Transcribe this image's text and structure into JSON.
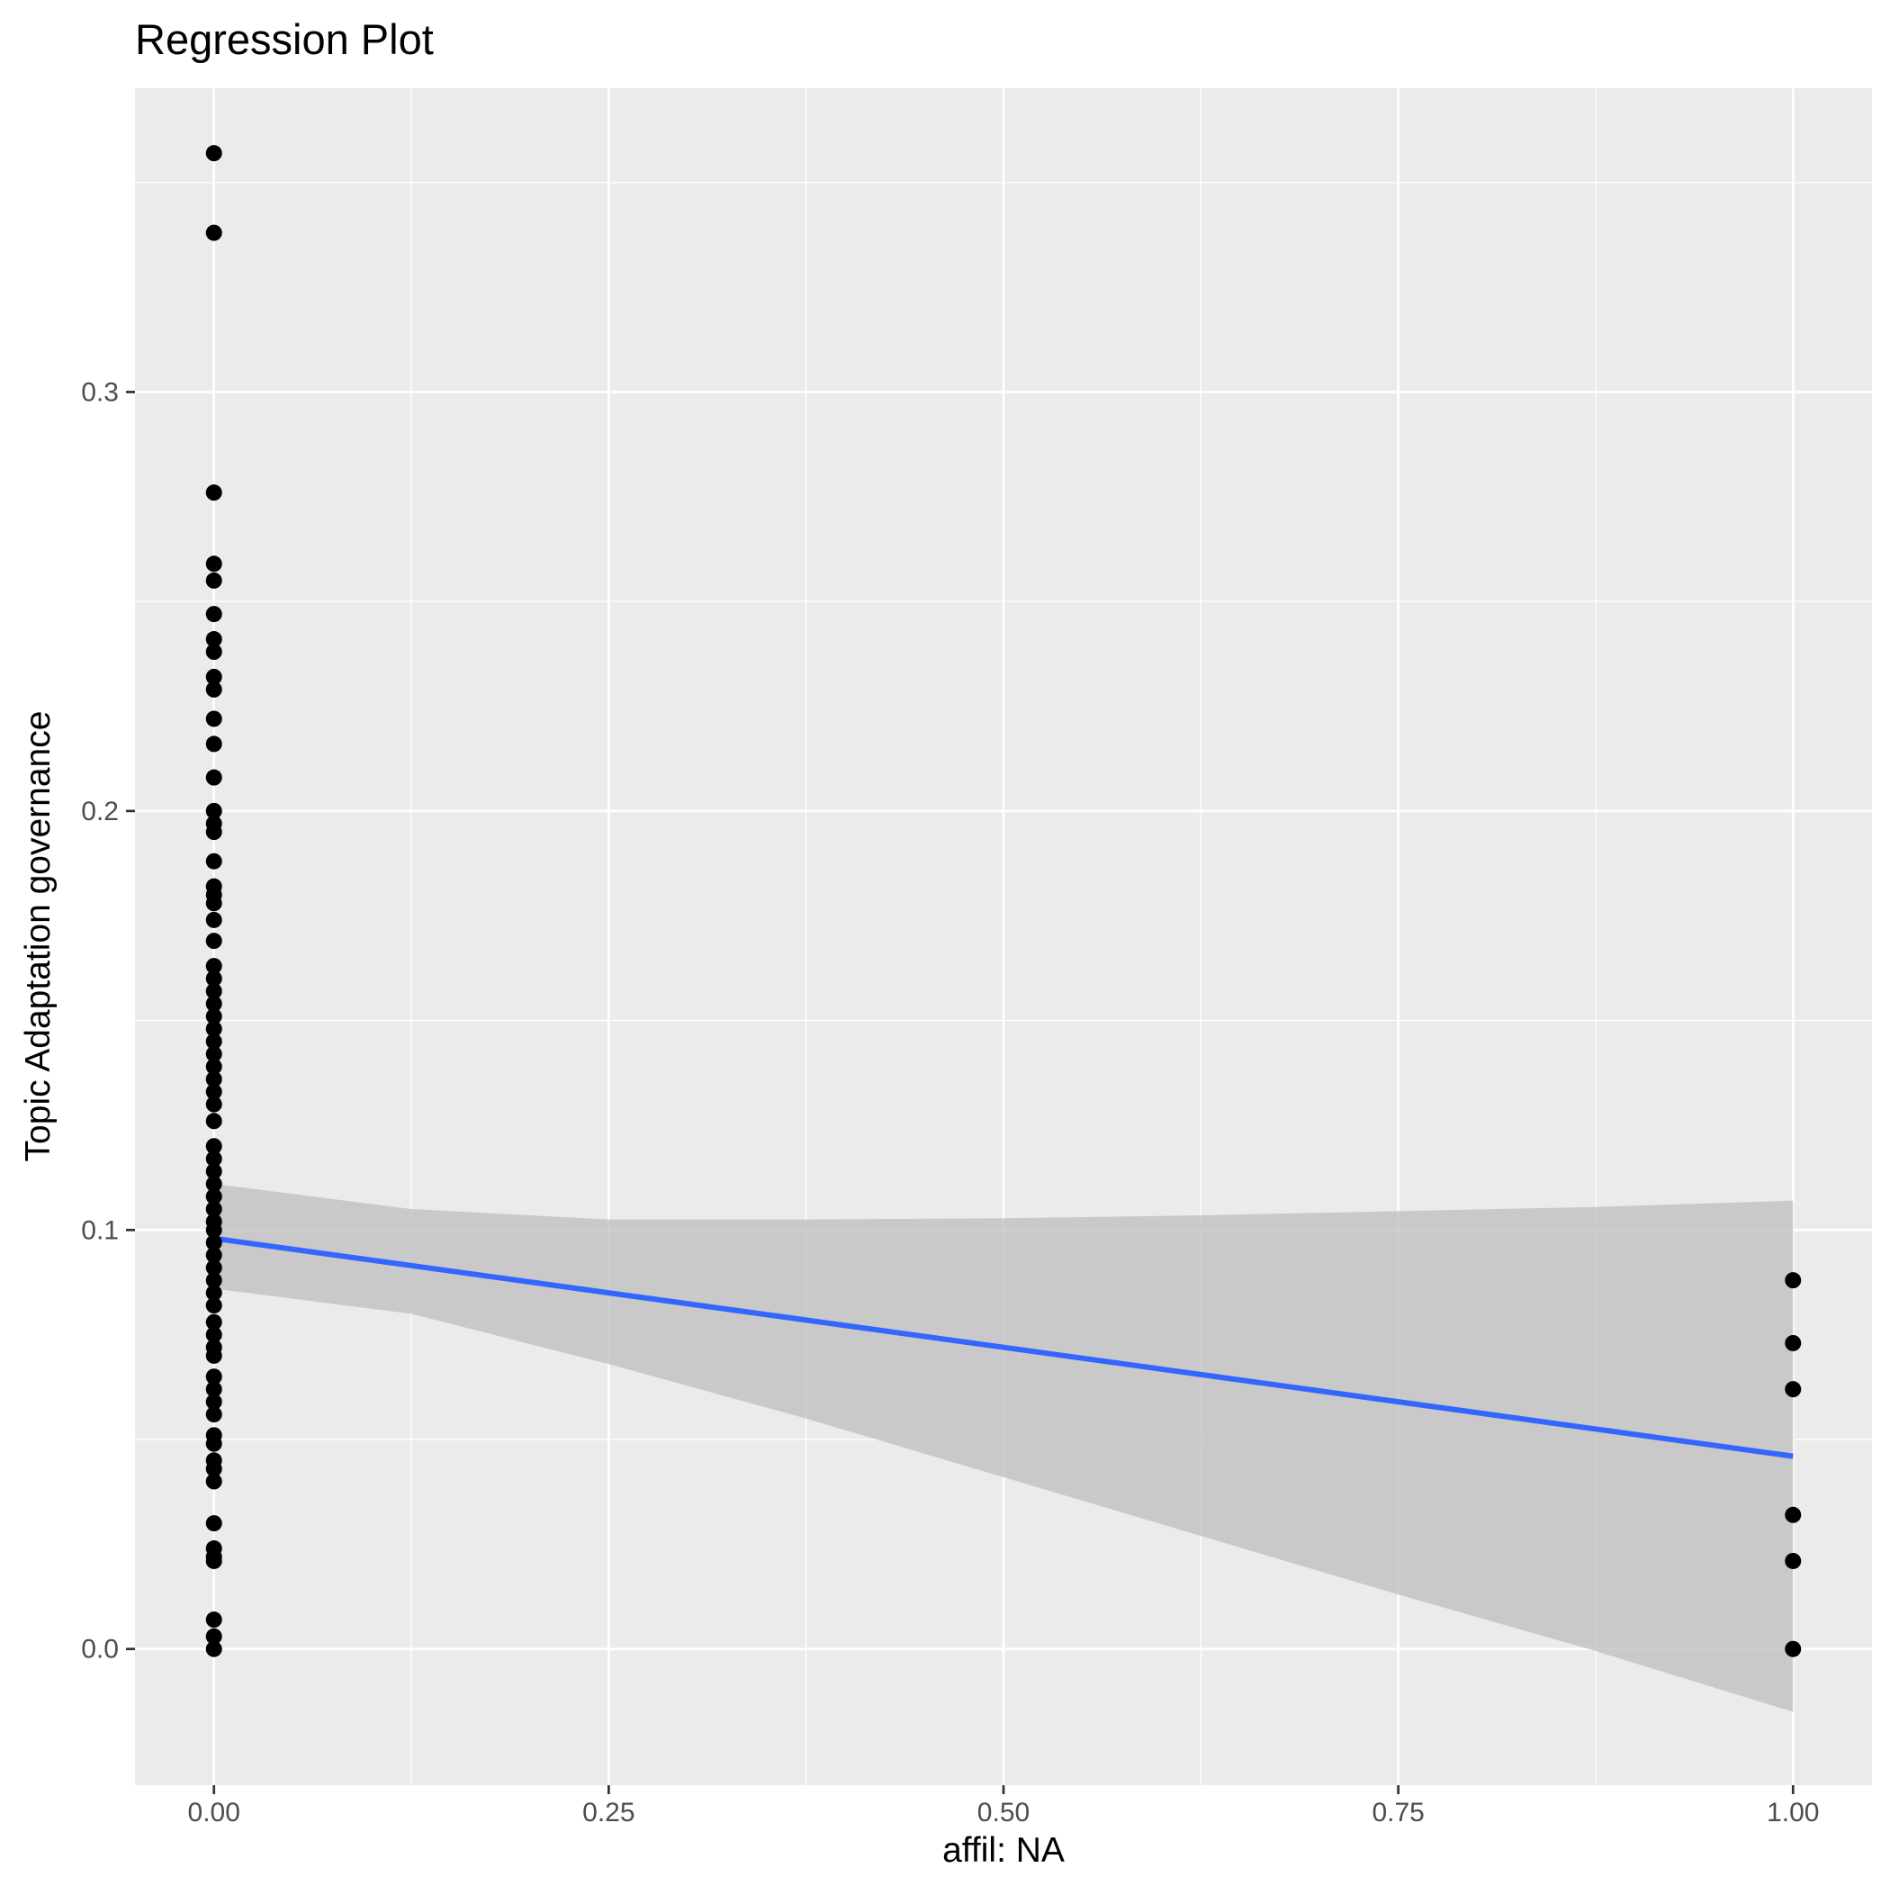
{
  "chart_data": {
    "type": "scatter",
    "title": "Regression Plot",
    "xlabel": "affil: NA",
    "ylabel": "Topic Adaptation governance",
    "xlim": [
      -0.05,
      1.05
    ],
    "ylim": [
      -0.0325,
      0.3725
    ],
    "x_ticks": [
      0,
      0.25,
      0.5,
      0.75,
      1
    ],
    "x_tick_labels": [
      "0.00",
      "0.25",
      "0.50",
      "0.75",
      "1.00"
    ],
    "y_ticks": [
      0,
      0.1,
      0.2,
      0.3
    ],
    "y_tick_labels": [
      "0.0",
      "0.1",
      "0.2",
      "0.3"
    ],
    "grid": true,
    "legend": "none",
    "points": {
      "color": "#000000",
      "x0_values": [
        0.357,
        0.338,
        0.276,
        0.259,
        0.255,
        0.247,
        0.241,
        0.238,
        0.232,
        0.229,
        0.222,
        0.216,
        0.208,
        0.2,
        0.197,
        0.195,
        0.188,
        0.182,
        0.18,
        0.178,
        0.174,
        0.169,
        0.163,
        0.16,
        0.157,
        0.154,
        0.151,
        0.148,
        0.145,
        0.142,
        0.139,
        0.136,
        0.133,
        0.13,
        0.126,
        0.12,
        0.117,
        0.114,
        0.111,
        0.108,
        0.105,
        0.102,
        0.1,
        0.097,
        0.094,
        0.091,
        0.088,
        0.085,
        0.082,
        0.078,
        0.075,
        0.072,
        0.07,
        0.065,
        0.062,
        0.059,
        0.056,
        0.051,
        0.049,
        0.045,
        0.043,
        0.04,
        0.03,
        0.024,
        0.022,
        0.021,
        0.007,
        0.003,
        0.0
      ],
      "x1_values": [
        0.088,
        0.073,
        0.062,
        0.032,
        0.021,
        0.0
      ]
    },
    "regression": {
      "color": "#3366ff",
      "x": [
        0,
        1
      ],
      "y": [
        0.098,
        0.046
      ]
    },
    "confidence_band": {
      "fill": "#bebebe",
      "x": [
        0,
        0.125,
        0.25,
        0.375,
        0.5,
        0.625,
        0.75,
        0.875,
        1
      ],
      "upper": [
        0.111,
        0.105,
        0.1025,
        0.1025,
        0.1028,
        0.1035,
        0.1045,
        0.1055,
        0.107
      ],
      "lower": [
        0.086,
        0.08,
        0.068,
        0.055,
        0.041,
        0.027,
        0.013,
        -0.0005,
        -0.015
      ]
    }
  }
}
